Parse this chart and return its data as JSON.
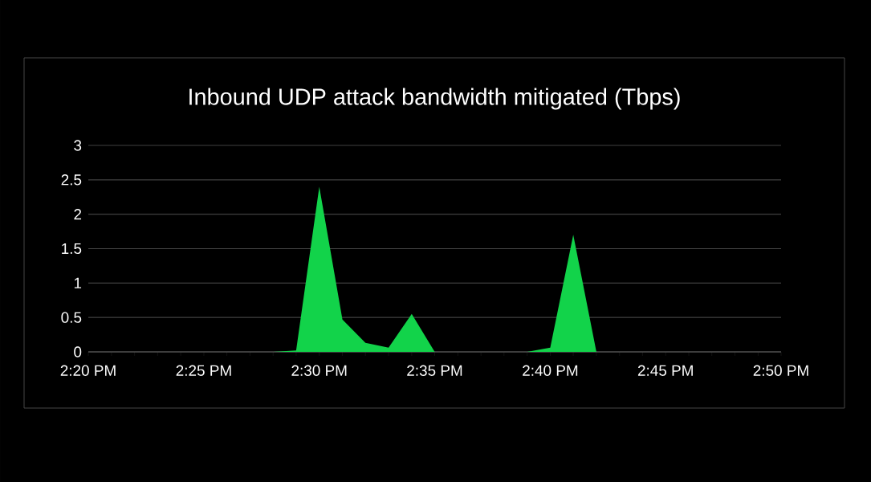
{
  "chart_data": {
    "type": "area",
    "title": "Inbound UDP attack bandwidth mitigated (Tbps)",
    "x": [
      14.3333,
      14.4667,
      14.4833,
      14.5,
      14.5167,
      14.5333,
      14.55,
      14.5667,
      14.5833,
      14.65,
      14.6667,
      14.6833,
      14.7,
      14.8333
    ],
    "series": [
      {
        "color": "#12d34a",
        "values": [
          0,
          0,
          0.02,
          2.4,
          0.47,
          0.13,
          0.06,
          0.55,
          0,
          0,
          0.06,
          1.7,
          0,
          0
        ]
      }
    ],
    "xlim": [
      14.3333,
      14.8333
    ],
    "xticks": [
      {
        "value": 14.3333,
        "label": "2:20 PM"
      },
      {
        "value": 14.35,
        "label": null
      },
      {
        "value": 14.3667,
        "label": null
      },
      {
        "value": 14.3833,
        "label": null
      },
      {
        "value": 14.4,
        "label": null
      },
      {
        "value": 14.4167,
        "label": "2:25 PM"
      },
      {
        "value": 14.4333,
        "label": null
      },
      {
        "value": 14.45,
        "label": null
      },
      {
        "value": 14.4667,
        "label": null
      },
      {
        "value": 14.4833,
        "label": null
      },
      {
        "value": 14.5,
        "label": "2:30 PM"
      },
      {
        "value": 14.5167,
        "label": null
      },
      {
        "value": 14.5333,
        "label": null
      },
      {
        "value": 14.55,
        "label": null
      },
      {
        "value": 14.5667,
        "label": null
      },
      {
        "value": 14.5833,
        "label": "2:35 PM"
      },
      {
        "value": 14.6,
        "label": null
      },
      {
        "value": 14.6167,
        "label": null
      },
      {
        "value": 14.6333,
        "label": null
      },
      {
        "value": 14.65,
        "label": null
      },
      {
        "value": 14.6667,
        "label": "2:40 PM"
      },
      {
        "value": 14.6833,
        "label": null
      },
      {
        "value": 14.7,
        "label": null
      },
      {
        "value": 14.7167,
        "label": null
      },
      {
        "value": 14.7333,
        "label": null
      },
      {
        "value": 14.75,
        "label": "2:45 PM"
      },
      {
        "value": 14.7667,
        "label": null
      },
      {
        "value": 14.7833,
        "label": null
      },
      {
        "value": 14.8,
        "label": null
      },
      {
        "value": 14.8167,
        "label": null
      },
      {
        "value": 14.8333,
        "label": "2:50 PM"
      }
    ],
    "ylim": [
      0,
      3
    ],
    "yticks": [
      0,
      0.5,
      1,
      1.5,
      2,
      2.5,
      3
    ],
    "grid": "y"
  }
}
